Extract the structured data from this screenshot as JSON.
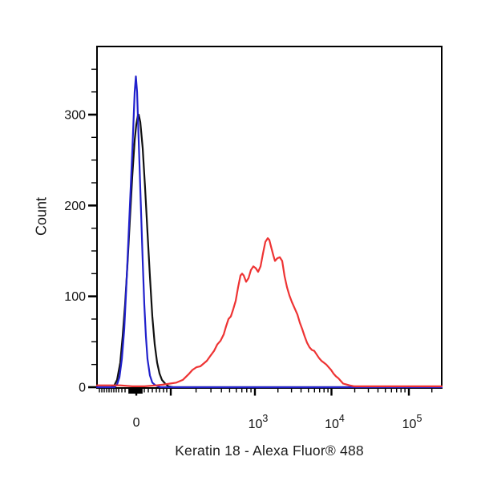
{
  "chart_data": {
    "type": "line",
    "subtype": "flow-cytometry-histogram-overlay",
    "title": "",
    "xlabel": "Keratin 18 - Alexa Fluor® 488",
    "ylabel": "Count",
    "grid": false,
    "legend": "none",
    "x_scale": "biexponential (linear around 0, log decades above ~10^2)",
    "axis_color": "#000000",
    "x_axis": {
      "major_ticks": [
        {
          "u": 0.114,
          "value": 0,
          "label": "0"
        },
        {
          "u": 0.214,
          "value": 100,
          "label": ""
        },
        {
          "u": 0.4581,
          "value": 1000,
          "base": "10",
          "exp": "3"
        },
        {
          "u": 0.6802,
          "value": 10000,
          "base": "10",
          "exp": "4"
        },
        {
          "u": 0.9047,
          "value": 100000,
          "base": "10",
          "exp": "5"
        }
      ],
      "minor_ticks_u": [
        0.007,
        0.014,
        0.0209,
        0.0279,
        0.0349,
        0.0419,
        0.0488,
        0.0558,
        0.0628,
        0.0721,
        0.0814,
        0.1372,
        0.1488,
        0.1605,
        0.1721,
        0.1814,
        0.193,
        0.2023,
        0.2874,
        0.3305,
        0.3609,
        0.3847,
        0.404,
        0.4202,
        0.4344,
        0.4467,
        0.5249,
        0.5642,
        0.5919,
        0.6133,
        0.6309,
        0.6458,
        0.6586,
        0.67,
        0.7477,
        0.7872,
        0.8151,
        0.8365,
        0.8542,
        0.8691,
        0.8819,
        0.8933,
        0.9714
      ],
      "zero_cluster_u": {
        "from": 0.093,
        "to": 0.1302,
        "ticks": 13
      }
    },
    "y_axis": {
      "range": [
        0,
        375
      ],
      "major_ticks": [
        {
          "value": 0,
          "label": "0"
        },
        {
          "value": 100,
          "label": "100"
        },
        {
          "value": 200,
          "label": "200"
        },
        {
          "value": 300,
          "label": "300"
        }
      ],
      "minor_step": 25
    },
    "series": [
      {
        "name": "black",
        "color": "#111111",
        "peak": {
          "x_value": "~0",
          "count": 300
        },
        "points": [
          [
            0.0,
            0
          ],
          [
            0.0395,
            0
          ],
          [
            0.0488,
            1
          ],
          [
            0.0581,
            8
          ],
          [
            0.0674,
            27
          ],
          [
            0.0744,
            56
          ],
          [
            0.0814,
            91
          ],
          [
            0.0884,
            135
          ],
          [
            0.0953,
            184
          ],
          [
            0.1023,
            232
          ],
          [
            0.1093,
            272
          ],
          [
            0.114,
            289
          ],
          [
            0.1186,
            299
          ],
          [
            0.1209,
            300
          ],
          [
            0.1256,
            292
          ],
          [
            0.1326,
            263
          ],
          [
            0.1395,
            219
          ],
          [
            0.1465,
            170
          ],
          [
            0.1535,
            122
          ],
          [
            0.1605,
            78
          ],
          [
            0.1674,
            47
          ],
          [
            0.1744,
            27
          ],
          [
            0.1814,
            15
          ],
          [
            0.1884,
            8
          ],
          [
            0.1977,
            4
          ],
          [
            0.207,
            1
          ],
          [
            0.2209,
            0
          ],
          [
            1.0,
            0
          ]
        ]
      },
      {
        "name": "blue",
        "color": "#2121cc",
        "peak": {
          "x_value": "~0",
          "count": 342
        },
        "points": [
          [
            0.0,
            0
          ],
          [
            0.0512,
            0
          ],
          [
            0.0581,
            3
          ],
          [
            0.0651,
            11
          ],
          [
            0.0721,
            31
          ],
          [
            0.0791,
            64
          ],
          [
            0.0837,
            100
          ],
          [
            0.0884,
            139
          ],
          [
            0.093,
            179
          ],
          [
            0.0977,
            219
          ],
          [
            0.1023,
            259
          ],
          [
            0.107,
            303
          ],
          [
            0.1093,
            325
          ],
          [
            0.1128,
            342
          ],
          [
            0.1163,
            325
          ],
          [
            0.1186,
            298
          ],
          [
            0.1233,
            245
          ],
          [
            0.1279,
            192
          ],
          [
            0.1326,
            139
          ],
          [
            0.1372,
            91
          ],
          [
            0.1419,
            56
          ],
          [
            0.1465,
            31
          ],
          [
            0.1535,
            13
          ],
          [
            0.1605,
            5
          ],
          [
            0.1698,
            2
          ],
          [
            0.1837,
            0
          ],
          [
            1.0,
            0
          ]
        ]
      },
      {
        "name": "red",
        "color": "#ee3333",
        "peak": {
          "x_value": "~1.3e3",
          "count": 164
        },
        "points": [
          [
            0.0,
            2
          ],
          [
            0.0674,
            2
          ],
          [
            0.1023,
            1
          ],
          [
            0.1372,
            1
          ],
          [
            0.1721,
            2
          ],
          [
            0.1953,
            3
          ],
          [
            0.2116,
            4
          ],
          [
            0.2302,
            5
          ],
          [
            0.2488,
            8
          ],
          [
            0.2651,
            14
          ],
          [
            0.2767,
            19
          ],
          [
            0.2884,
            22
          ],
          [
            0.3,
            23
          ],
          [
            0.3093,
            26
          ],
          [
            0.3186,
            29
          ],
          [
            0.3279,
            34
          ],
          [
            0.3395,
            40
          ],
          [
            0.3488,
            47
          ],
          [
            0.3581,
            51
          ],
          [
            0.3674,
            58
          ],
          [
            0.3744,
            67
          ],
          [
            0.3814,
            75
          ],
          [
            0.3884,
            78
          ],
          [
            0.3953,
            86
          ],
          [
            0.4023,
            95
          ],
          [
            0.4093,
            110
          ],
          [
            0.4163,
            123
          ],
          [
            0.4209,
            125
          ],
          [
            0.4256,
            123
          ],
          [
            0.4326,
            116
          ],
          [
            0.4395,
            120
          ],
          [
            0.4465,
            129
          ],
          [
            0.4535,
            133
          ],
          [
            0.4605,
            131
          ],
          [
            0.4674,
            127
          ],
          [
            0.4744,
            133
          ],
          [
            0.4814,
            147
          ],
          [
            0.4884,
            160
          ],
          [
            0.4953,
            164
          ],
          [
            0.5,
            162
          ],
          [
            0.5047,
            155
          ],
          [
            0.5116,
            145
          ],
          [
            0.5163,
            139
          ],
          [
            0.5233,
            142
          ],
          [
            0.5302,
            143
          ],
          [
            0.5372,
            139
          ],
          [
            0.5442,
            122
          ],
          [
            0.5512,
            110
          ],
          [
            0.5581,
            101
          ],
          [
            0.5651,
            94
          ],
          [
            0.5721,
            88
          ],
          [
            0.5814,
            80
          ],
          [
            0.5884,
            71
          ],
          [
            0.5953,
            64
          ],
          [
            0.6023,
            56
          ],
          [
            0.6093,
            49
          ],
          [
            0.6163,
            44
          ],
          [
            0.6233,
            41
          ],
          [
            0.6302,
            40
          ],
          [
            0.6372,
            36
          ],
          [
            0.6442,
            32
          ],
          [
            0.6512,
            29
          ],
          [
            0.6581,
            27
          ],
          [
            0.6651,
            25
          ],
          [
            0.6721,
            22
          ],
          [
            0.6791,
            19
          ],
          [
            0.686,
            15
          ],
          [
            0.693,
            12
          ],
          [
            0.7,
            10
          ],
          [
            0.707,
            7
          ],
          [
            0.714,
            4
          ],
          [
            0.7233,
            3
          ],
          [
            0.7326,
            2
          ],
          [
            0.7465,
            1
          ],
          [
            1.0,
            1
          ]
        ]
      }
    ]
  }
}
